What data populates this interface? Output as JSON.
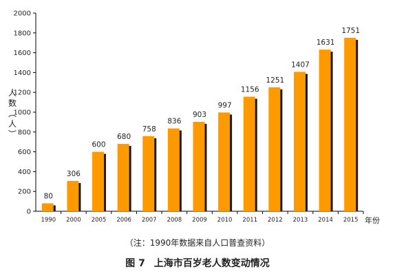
{
  "chart_data": {
    "type": "bar",
    "categories": [
      "1990",
      "2000",
      "2005",
      "2006",
      "2007",
      "2008",
      "2009",
      "2010",
      "2011",
      "2012",
      "2013",
      "2014",
      "2015"
    ],
    "values": [
      80,
      306,
      600,
      680,
      758,
      836,
      903,
      997,
      1156,
      1251,
      1407,
      1631,
      1751
    ],
    "ylim": [
      0,
      2000
    ],
    "yticks": [
      0,
      200,
      400,
      600,
      800,
      1000,
      1200,
      1400,
      1600,
      1800,
      2000
    ],
    "ylabel_chars": [
      "人",
      "数",
      "︵",
      "人",
      "︶"
    ],
    "xlabel": "年份",
    "grid": false,
    "bar_color": "#FF9900",
    "shadow_color": "#1a1a1a"
  },
  "note": "（注：1990年数据来自人口普查资料）",
  "caption": {
    "figure_no": "图 7",
    "title": "上海市百岁老人数变动情况"
  }
}
